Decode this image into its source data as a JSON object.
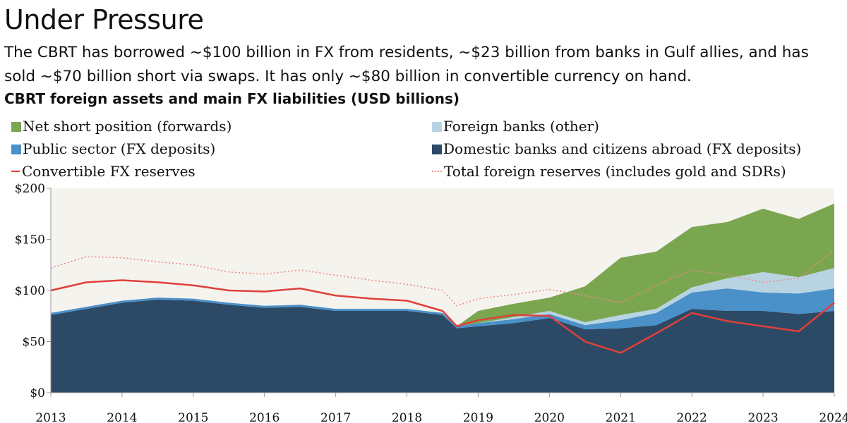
{
  "title": "Under Pressure",
  "subtitle": "The CBRT has borrowed ~$100 billion in FX from residents, ~$23 billion from banks in Gulf allies, and has sold ~$70 billion short via swaps. It has only ~$80 billion in convertible currency on hand.",
  "chart_data": {
    "type": "area",
    "title": "CBRT foreign assets and main FX liabilities (USD billions)",
    "stacked": true,
    "x_ticks": [
      "2013",
      "2014",
      "2015",
      "2016",
      "2017",
      "2018",
      "2019",
      "2020",
      "2021",
      "2022",
      "2023",
      "2024"
    ],
    "y_ticks": [
      "$0",
      "$50",
      "$100",
      "$150",
      "$200"
    ],
    "ylim": [
      0,
      200
    ],
    "xlim": [
      2013.0,
      2024.0
    ],
    "legend_placement": "top",
    "grid": false,
    "x": [
      2013.0,
      2013.5,
      2014.0,
      2014.5,
      2015.0,
      2015.5,
      2016.0,
      2016.5,
      2017.0,
      2017.5,
      2018.0,
      2018.5,
      2018.7,
      2019.0,
      2019.5,
      2020.0,
      2020.5,
      2021.0,
      2021.5,
      2022.0,
      2022.5,
      2023.0,
      2023.5,
      2024.0
    ],
    "series": [
      {
        "name": "Domestic banks and citizens abroad (FX deposits)",
        "kind": "area",
        "color": "#2c4a66",
        "values": [
          76,
          82,
          88,
          91,
          90,
          86,
          83,
          84,
          80,
          80,
          80,
          76,
          63,
          65,
          68,
          73,
          62,
          63,
          66,
          82,
          80,
          80,
          77,
          80
        ]
      },
      {
        "name": "Public sector (FX deposits)",
        "kind": "area",
        "color": "#4a90c9",
        "values": [
          2,
          2,
          2,
          2,
          2,
          2,
          2,
          2,
          2,
          2,
          2,
          2,
          2,
          3,
          4,
          4,
          4,
          8,
          12,
          16,
          22,
          18,
          20,
          22
        ]
      },
      {
        "name": "Foreign banks (other)",
        "kind": "area",
        "color": "#b8d4e3",
        "values": [
          0,
          0,
          0,
          0,
          0,
          0,
          0,
          0,
          0,
          0,
          0,
          0,
          0,
          0,
          2,
          3,
          3,
          5,
          4,
          5,
          10,
          20,
          16,
          20
        ]
      },
      {
        "name": "Net short position (forwards)",
        "kind": "area",
        "color": "#7aa650",
        "values": [
          0,
          0,
          0,
          0,
          0,
          0,
          0,
          0,
          0,
          0,
          0,
          0,
          0,
          12,
          13,
          13,
          35,
          56,
          56,
          59,
          55,
          62,
          57,
          63
        ]
      },
      {
        "name": "Convertible FX reserves",
        "kind": "line",
        "color": "#e0403a",
        "values": [
          100,
          108,
          110,
          108,
          105,
          100,
          99,
          102,
          95,
          92,
          90,
          80,
          65,
          71,
          76,
          75,
          50,
          39,
          58,
          78,
          70,
          65,
          60,
          88
        ]
      },
      {
        "name": "Total foreign reserves (includes gold and SDRs)",
        "kind": "dotted",
        "color": "#f08a84",
        "values": [
          122,
          133,
          132,
          128,
          125,
          118,
          116,
          120,
          115,
          110,
          106,
          100,
          85,
          92,
          96,
          101,
          95,
          88,
          105,
          120,
          115,
          108,
          112,
          140
        ]
      }
    ]
  }
}
